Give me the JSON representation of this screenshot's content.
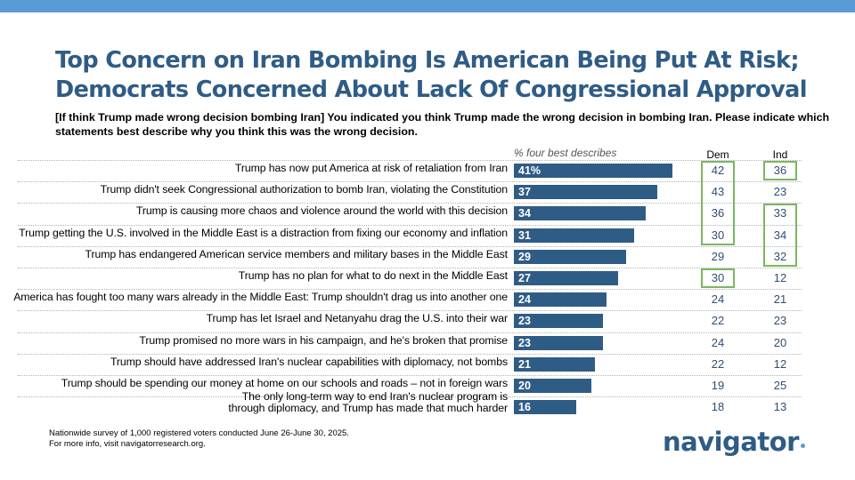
{
  "title_lines": [
    "Top Concern on Iran Bombing Is American Being Put At Risk;",
    "Democrats Concerned About Lack Of Congressional Approval"
  ],
  "question": "[If think Trump made wrong decision bombing Iran] You indicated you think Trump made the wrong decision in bombing Iran. Please indicate which statements best describe why you think this was the wrong decision.",
  "column_headers": {
    "pct": "% four best describes",
    "dem": "Dem",
    "ind": "Ind"
  },
  "colors": {
    "bar": "#2f5c85",
    "title": "#2f5c85",
    "highlight": "#7bb661",
    "topbar": "#5b9bd5"
  },
  "chart_data": {
    "type": "bar",
    "orientation": "horizontal",
    "title": "",
    "xlabel": "% four best describes",
    "categories": [
      "Trump has now put America at risk of retaliation from Iran",
      "Trump didn't seek Congressional authorization to bomb Iran, violating the Constitution",
      "Trump is causing more chaos and violence around the world with this decision",
      "Trump getting the U.S. involved in the Middle East is a distraction from fixing our economy and inflation",
      "Trump has endangered American service members and military bases in the Middle East",
      "Trump has no plan for what to do next in the Middle East",
      "America has fought too many wars already in the Middle East: Trump shouldn't drag us into another one",
      "Trump has let Israel and Netanyahu drag the U.S. into their war",
      "Trump promised no more wars in his campaign, and he's broken that promise",
      "Trump should have addressed Iran's nuclear capabilities with diplomacy, not bombs",
      "Trump should be spending our money at home on our schools and roads – not in foreign wars",
      "The only long-term way to end Iran's nuclear program is through diplomacy, and Trump has made that much harder"
    ],
    "category_lines": [
      [
        "Trump has now put America at risk of retaliation from Iran"
      ],
      [
        "Trump didn't seek Congressional authorization to bomb Iran, violating the Constitution"
      ],
      [
        "Trump is causing more chaos and violence around the world with this decision"
      ],
      [
        "Trump getting the U.S. involved in the Middle East is a distraction from fixing our economy and inflation"
      ],
      [
        "Trump has endangered American service members and military bases in the Middle East"
      ],
      [
        "Trump has no plan for what to do next in the Middle East"
      ],
      [
        "America has fought too many wars already in the Middle East: Trump shouldn't drag us into another one"
      ],
      [
        "Trump has let Israel and Netanyahu drag the U.S. into their war"
      ],
      [
        "Trump promised no more wars in his campaign, and he's broken that promise"
      ],
      [
        "Trump should have addressed Iran's nuclear capabilities with diplomacy, not bombs"
      ],
      [
        "Trump should be spending our money at home on our schools and roads – not in foreign wars"
      ],
      [
        "The only long-term way to end Iran's nuclear program is",
        "through diplomacy, and Trump has made that much harder"
      ]
    ],
    "value_labels": [
      "41%",
      "37",
      "34",
      "31",
      "29",
      "27",
      "24",
      "23",
      "23",
      "21",
      "20",
      "16"
    ],
    "series": [
      {
        "name": "% four best describes",
        "values": [
          41,
          37,
          34,
          31,
          29,
          27,
          24,
          23,
          23,
          21,
          20,
          16
        ]
      },
      {
        "name": "Dem",
        "values": [
          42,
          43,
          36,
          30,
          29,
          30,
          24,
          22,
          24,
          22,
          19,
          18
        ]
      },
      {
        "name": "Ind",
        "values": [
          36,
          23,
          33,
          34,
          32,
          12,
          21,
          23,
          20,
          12,
          25,
          13
        ]
      }
    ],
    "highlights": {
      "dem": [
        [
          0,
          3
        ],
        [
          5,
          5
        ]
      ],
      "ind": [
        [
          0,
          0
        ],
        [
          2,
          4
        ]
      ]
    },
    "xlim": [
      0,
      100
    ],
    "grid": false,
    "legend": "none"
  },
  "footnote_lines": [
    "Nationwide survey of 1,000 registered voters conducted June 26-June 30, 2025.",
    "For more info, visit navigatorresearch.org."
  ],
  "logo": {
    "text": "navigator",
    "dot": "•"
  }
}
